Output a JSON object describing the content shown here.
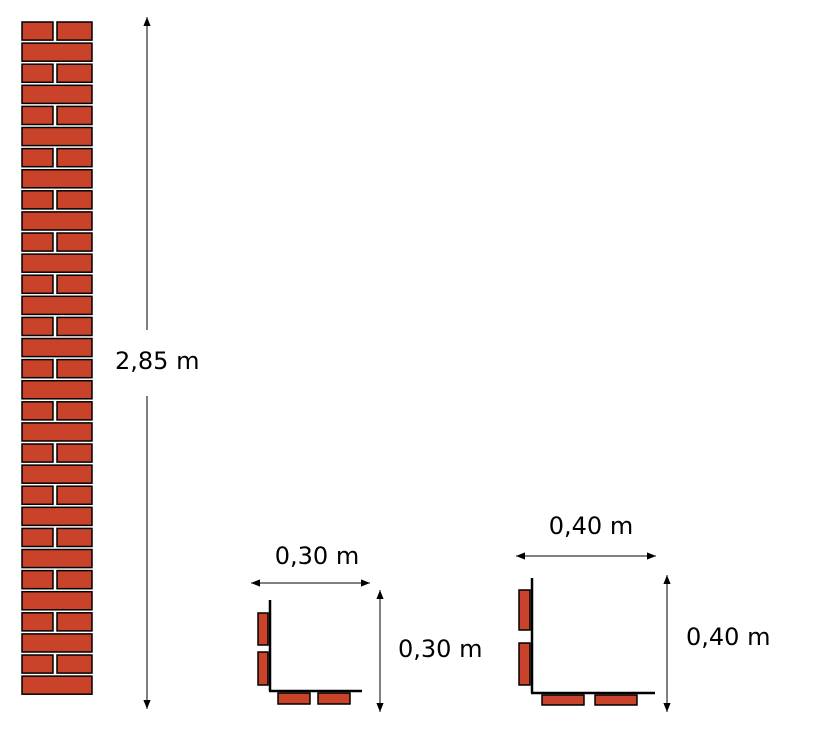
{
  "wall": {
    "height_label": "2,85 m"
  },
  "small_corner": {
    "width_label": "0,30 m",
    "height_label": "0,30 m"
  },
  "large_corner": {
    "width_label": "0,40 m",
    "height_label": "0,40 m"
  }
}
